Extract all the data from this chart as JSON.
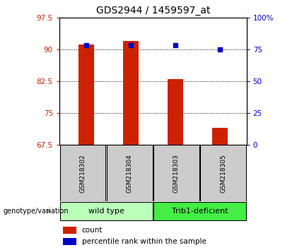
{
  "title": "GDS2944 / 1459597_at",
  "samples": [
    "GSM218302",
    "GSM218304",
    "GSM218303",
    "GSM218305"
  ],
  "bar_values": [
    91.2,
    92.0,
    83.0,
    71.5
  ],
  "percentile_values": [
    78,
    78,
    78,
    75
  ],
  "bar_bottom": 67.5,
  "ylim_left": [
    67.5,
    97.5
  ],
  "ylim_right": [
    0,
    100
  ],
  "yticks_left": [
    67.5,
    75.0,
    82.5,
    90.0,
    97.5
  ],
  "yticks_right": [
    0,
    25,
    50,
    75,
    100
  ],
  "ytick_labels_left": [
    "67.5",
    "75",
    "82.5",
    "90",
    "97.5"
  ],
  "ytick_labels_right": [
    "0",
    "25",
    "50",
    "75",
    "100%"
  ],
  "bar_color": "#cc2200",
  "dot_color": "#0000cc",
  "groups": [
    {
      "label": "wild type",
      "indices": [
        0,
        1
      ],
      "color": "#bbffbb"
    },
    {
      "label": "Trib1-deficient",
      "indices": [
        2,
        3
      ],
      "color": "#44ee44"
    }
  ],
  "group_label": "genotype/variation",
  "legend_count_label": "count",
  "legend_percentile_label": "percentile rank within the sample",
  "bg_plot": "#ffffff",
  "bg_sample_box": "#cccccc",
  "title_fontsize": 10,
  "tick_fontsize": 7.5,
  "bar_width": 0.35
}
